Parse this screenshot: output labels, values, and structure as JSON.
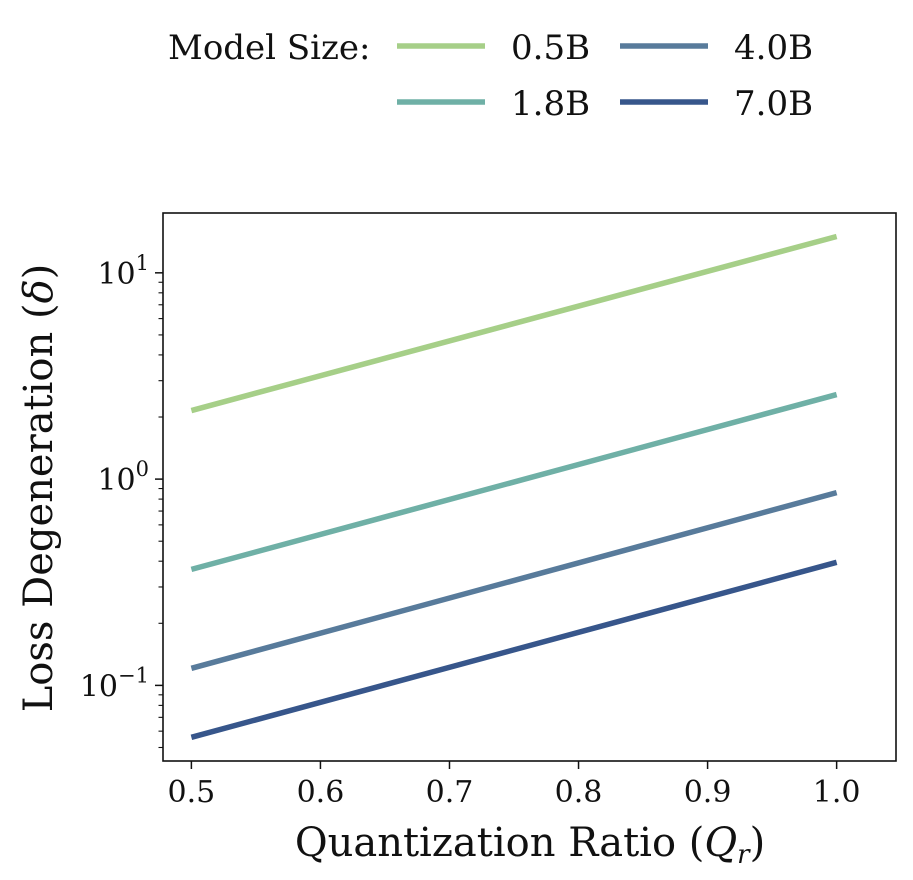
{
  "chart_data": {
    "type": "line",
    "title": "",
    "xlabel": "Quantization Ratio (Q_r)",
    "xlabel_main": "Quantization Ratio (",
    "xlabel_var": "Q",
    "xlabel_sub": "r",
    "xlabel_close": ")",
    "ylabel": "Loss Degeneration (δ)",
    "ylabel_main": "Loss Degeneration (",
    "ylabel_var": "δ",
    "ylabel_close": ")",
    "yscale": "log",
    "xlim": [
      0.478,
      1.046
    ],
    "ylim": [
      0.043,
      19.5
    ],
    "x_ticks": [
      0.5,
      0.6,
      0.7,
      0.8,
      0.9,
      1.0
    ],
    "x_tick_labels": [
      "0.5",
      "0.6",
      "0.7",
      "0.8",
      "0.9",
      "1.0"
    ],
    "y_ticks": [
      {
        "value": 10,
        "base": "10",
        "exp": "1"
      },
      {
        "value": 1,
        "base": "10",
        "exp": "0"
      },
      {
        "value": 0.1,
        "base": "10",
        "exp": "−1"
      }
    ],
    "legend": {
      "title": "Model Size:",
      "placement": "top-center",
      "columns": 2
    },
    "series": [
      {
        "name": "0.5B",
        "color": "#a6cf88",
        "x": [
          0.5,
          1.0
        ],
        "y": [
          2.15,
          15.0
        ]
      },
      {
        "name": "1.8B",
        "color": "#6fb0a6",
        "x": [
          0.5,
          1.0
        ],
        "y": [
          0.365,
          2.57
        ]
      },
      {
        "name": "4.0B",
        "color": "#587b9b",
        "x": [
          0.5,
          1.0
        ],
        "y": [
          0.121,
          0.86
        ]
      },
      {
        "name": "7.0B",
        "color": "#37568b",
        "x": [
          0.5,
          1.0
        ],
        "y": [
          0.056,
          0.395
        ]
      }
    ]
  }
}
